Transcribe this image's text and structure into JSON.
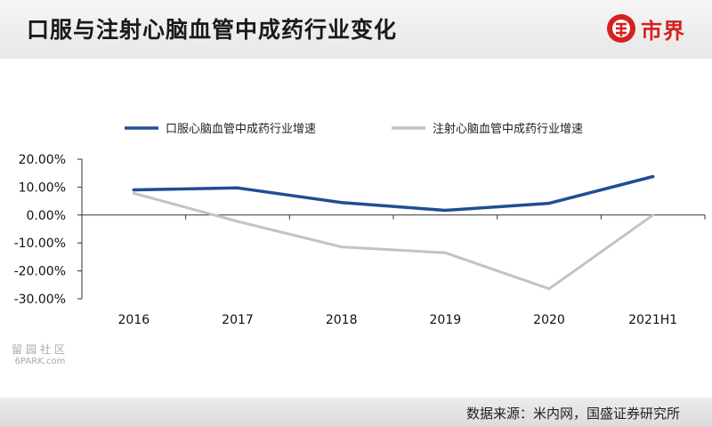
{
  "header": {
    "title": "口服与注射心脑血管中成药行业变化",
    "brand_label": "市界",
    "brand_color": "#d62020"
  },
  "chart_data": {
    "type": "line",
    "categories": [
      "2016",
      "2017",
      "2018",
      "2019",
      "2020",
      "2021H1"
    ],
    "series": [
      {
        "name": "口服心脑血管中成药行业增速",
        "color": "#1f4e93",
        "values": [
          9.0,
          9.7,
          4.5,
          1.7,
          4.2,
          13.8
        ]
      },
      {
        "name": "注射心脑血管中成药行业增速",
        "color": "#c3c3c3",
        "values": [
          7.8,
          -2.3,
          -11.4,
          -13.5,
          -26.4,
          0.0
        ]
      }
    ],
    "yticks": [
      "20.00%",
      "10.00%",
      "0.00%",
      "-10.00%",
      "-20.00%",
      "-30.00%"
    ],
    "ylim": [
      -30,
      20
    ],
    "xlabel": "",
    "ylabel": "",
    "legend_position": "top",
    "grid": false
  },
  "watermark": {
    "cn": "留园社区",
    "en": "6PARK.com"
  },
  "footer": {
    "source": "数据来源：米内网，国盛证券研究所"
  }
}
